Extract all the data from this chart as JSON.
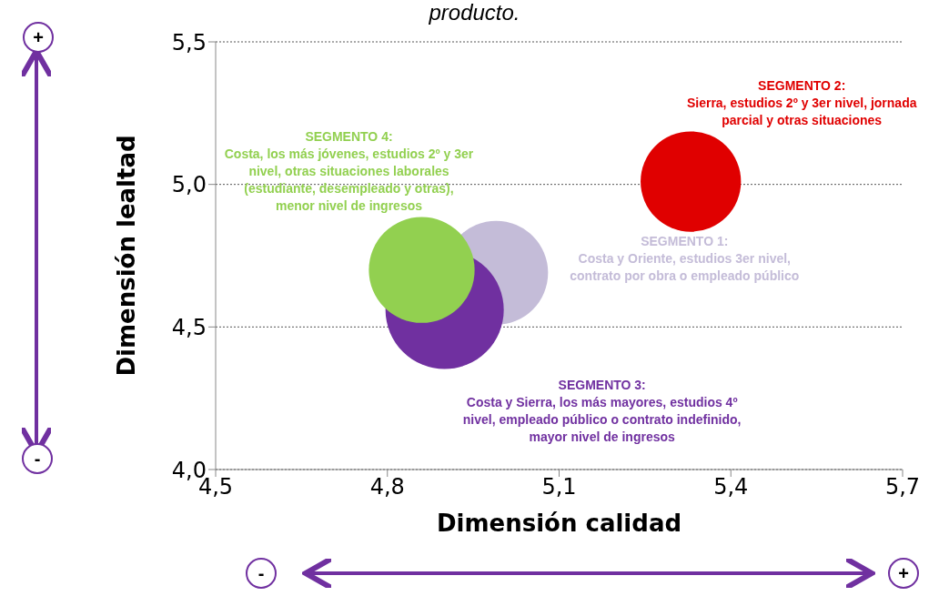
{
  "chart_data": {
    "type": "bubble",
    "title": "producto.",
    "xlabel": "Dimensión calidad",
    "ylabel": "Dimensión lealtad",
    "xlim": [
      4.5,
      5.7
    ],
    "xticks": [
      {
        "value": 4.5,
        "label": "4,5"
      },
      {
        "value": 4.8,
        "label": "4,8"
      },
      {
        "value": 5.1,
        "label": "5,1"
      },
      {
        "value": 5.4,
        "label": "5,4"
      },
      {
        "value": 5.7,
        "label": "5,7"
      }
    ],
    "ylim": [
      4.0,
      5.5
    ],
    "yticks": [
      {
        "value": 4.0,
        "label": "4,0"
      },
      {
        "value": 4.5,
        "label": "4,5"
      },
      {
        "value": 5.0,
        "label": "5,0"
      },
      {
        "value": 5.5,
        "label": "5,5"
      }
    ],
    "grid": "y",
    "series": [
      {
        "name": "SEGMENTO 1:\nCosta y Oriente, estudios 3er nivel,\ncontrato por obra o empleado público",
        "color": "#c4bcd8",
        "x": [
          4.99
        ],
        "values": [
          4.69
        ],
        "sizes": [
          0.77
        ]
      },
      {
        "name": "SEGMENTO 2:\nSierra, estudios 2º y 3er nivel, jornada\nparcial y otras situaciones",
        "color": "#e00000",
        "x": [
          5.33
        ],
        "values": [
          5.01
        ],
        "sizes": [
          0.72
        ]
      },
      {
        "name": "SEGMENTO 3:\nCosta y Sierra, los más mayores, estudios 4º\nnivel, empleado público o contrato indefinido,\nmayor nivel de ingresos",
        "color": "#7030a0",
        "x": [
          4.9
        ],
        "values": [
          4.56
        ],
        "sizes": [
          1
        ]
      },
      {
        "name": "SEGMENTO 4:\nCosta, los más jóvenes, estudios 2º y 3er\nnivel, otras situaciones laborales\n(estudiante, desempleado y otras),\nmenor nivel de ingresos",
        "color": "#92d050",
        "x": [
          4.86
        ],
        "values": [
          4.7
        ],
        "sizes": [
          0.8
        ]
      }
    ],
    "annotations": [
      "+",
      "-",
      "-",
      "+"
    ]
  }
}
